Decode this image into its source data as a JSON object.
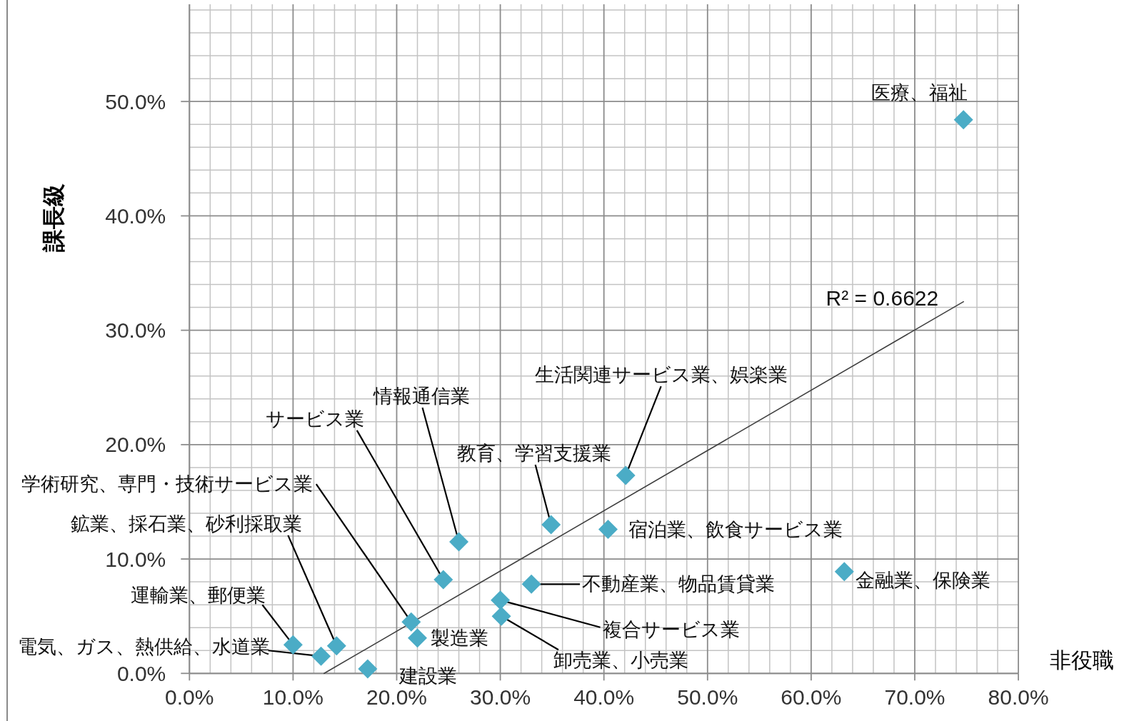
{
  "chart_data": {
    "type": "scatter",
    "xlabel": "非役職",
    "ylabel": "課長級",
    "xlim": [
      0,
      80
    ],
    "ylim": [
      0,
      58.5
    ],
    "xticks": [
      {
        "value": 0,
        "label": "0.0%"
      },
      {
        "value": 10,
        "label": "10.0%"
      },
      {
        "value": 20,
        "label": "20.0%"
      },
      {
        "value": 30,
        "label": "30.0%"
      },
      {
        "value": 40,
        "label": "40.0%"
      },
      {
        "value": 50,
        "label": "50.0%"
      },
      {
        "value": 60,
        "label": "60.0%"
      },
      {
        "value": 70,
        "label": "70.0%"
      },
      {
        "value": 80,
        "label": "80.0%"
      }
    ],
    "yticks": [
      {
        "value": 0,
        "label": "0.0%"
      },
      {
        "value": 10,
        "label": "10.0%"
      },
      {
        "value": 20,
        "label": "20.0%"
      },
      {
        "value": 30,
        "label": "30.0%"
      },
      {
        "value": 40,
        "label": "40.0%"
      },
      {
        "value": 50,
        "label": "50.0%"
      }
    ],
    "grid": true,
    "series": [
      {
        "type": "scatter",
        "color": "#4bacc6",
        "marker": "diamond",
        "x": [
          74.7,
          42.1,
          34.9,
          26.0,
          24.5,
          21.4,
          14.2,
          10.0,
          12.7,
          17.2,
          22.0,
          30.0,
          30.1,
          33.0,
          40.4,
          63.2
        ],
        "values": [
          48.4,
          17.3,
          13.0,
          11.5,
          8.2,
          4.5,
          2.4,
          2.5,
          1.5,
          0.4,
          3.1,
          6.4,
          5.0,
          7.8,
          12.6,
          8.9
        ]
      },
      {
        "type": "line",
        "color": "#404040",
        "marker": "none",
        "x": [
          13.0,
          74.7
        ],
        "values": [
          0,
          32.5
        ]
      }
    ],
    "annotations": [
      {
        "text": "R² = 0.6622",
        "x": 74.7,
        "y": 32.5
      },
      {
        "text": "医療、福祉",
        "x": 74.7,
        "y": 48.4
      },
      {
        "text": "生活関連サービス業、娯楽業",
        "x": 42.1,
        "y": 17.3
      },
      {
        "text": "教育、学習支援業",
        "x": 34.9,
        "y": 13.0
      },
      {
        "text": "情報通信業",
        "x": 26.0,
        "y": 11.5
      },
      {
        "text": "サービス業",
        "x": 24.5,
        "y": 8.2
      },
      {
        "text": "学術研究、専門・技術サービス業",
        "x": 21.4,
        "y": 4.5
      },
      {
        "text": "鉱業、採石業、砂利採取業",
        "x": 14.2,
        "y": 2.4
      },
      {
        "text": "運輸業、郵便業",
        "x": 10.0,
        "y": 2.5
      },
      {
        "text": "電気、ガス、熱供給、水道業",
        "x": 12.7,
        "y": 1.5
      },
      {
        "text": "建設業",
        "x": 17.2,
        "y": 0.4
      },
      {
        "text": "製造業",
        "x": 22.0,
        "y": 3.1
      },
      {
        "text": "複合サービス業",
        "x": 30.0,
        "y": 6.4
      },
      {
        "text": "卸売業、小売業",
        "x": 30.1,
        "y": 5.0
      },
      {
        "text": "不動産業、物品賃貸業",
        "x": 33.0,
        "y": 7.8
      },
      {
        "text": "宿泊業、飲食サービス業",
        "x": 40.4,
        "y": 12.6
      },
      {
        "text": "金融業、保険業",
        "x": 63.2,
        "y": 8.9
      }
    ]
  }
}
